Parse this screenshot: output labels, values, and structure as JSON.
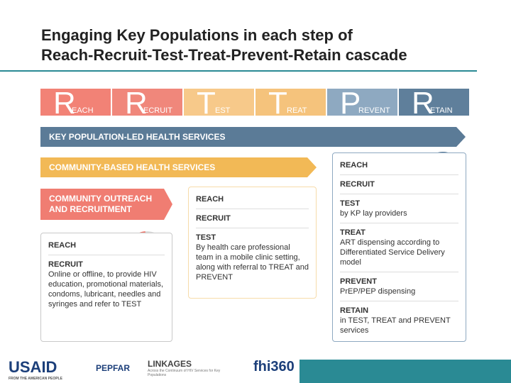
{
  "title": [
    "Engaging Key Populations in each step of",
    "Reach-Recruit-Test-Treat-Prevent-Retain cascade"
  ],
  "steps": [
    {
      "letter": "R",
      "rest": "EACH",
      "color": "#f28276"
    },
    {
      "letter": "R",
      "rest": "ECRUIT",
      "color": "#f0877b"
    },
    {
      "letter": "T",
      "rest": "EST",
      "color": "#f7c98a"
    },
    {
      "letter": "T",
      "rest": "REAT",
      "color": "#f5c37c"
    },
    {
      "letter": "P",
      "rest": "REVENT",
      "color": "#8ea9c1"
    },
    {
      "letter": "R",
      "rest": "ETAIN",
      "color": "#5f7f9b"
    }
  ],
  "bars": [
    {
      "label": "KEY POPULATION-LED HEALTH SERVICES",
      "color": "#5b7b97"
    },
    {
      "label": "COMMUNITY-BASED HEALTH SERVICES",
      "color": "#f2b956"
    },
    {
      "label": "COMMUNITY OUTREACH AND RECRUITMENT",
      "color": "#f07d72"
    }
  ],
  "panels": [
    {
      "color": "#c9c9c9",
      "items": [
        {
          "heading": "REACH"
        },
        {
          "heading": "RECRUIT",
          "body": "Online or offline, to provide HIV education, promotional materials, condoms, lubricant, needles and syringes and refer to TEST"
        }
      ]
    },
    {
      "color": "#f7dcaa",
      "items": [
        {
          "heading": "REACH"
        },
        {
          "heading": "RECRUIT"
        },
        {
          "heading": "TEST",
          "body": "By health care professional team in a mobile clinic setting, along with referral to TREAT and PREVENT"
        }
      ]
    },
    {
      "color": "#8ea9c1",
      "items": [
        {
          "heading": "REACH"
        },
        {
          "heading": "RECRUIT"
        },
        {
          "heading": "TEST",
          "body": "by KP lay providers"
        },
        {
          "heading": "TREAT",
          "body": "ART dispensing according to Differentiated Service Delivery model"
        },
        {
          "heading": "PREVENT",
          "body": "PrEP/PEP dispensing"
        },
        {
          "heading": "RETAIN",
          "body": "in TEST, TREAT and PREVENT services"
        }
      ]
    }
  ],
  "logos": [
    "USAID",
    "FROM THE AMERICAN PEOPLE",
    "PEPFAR",
    "LINKAGES",
    "Across the Continuum of HIV Services for Key Populations",
    "fhi360"
  ]
}
